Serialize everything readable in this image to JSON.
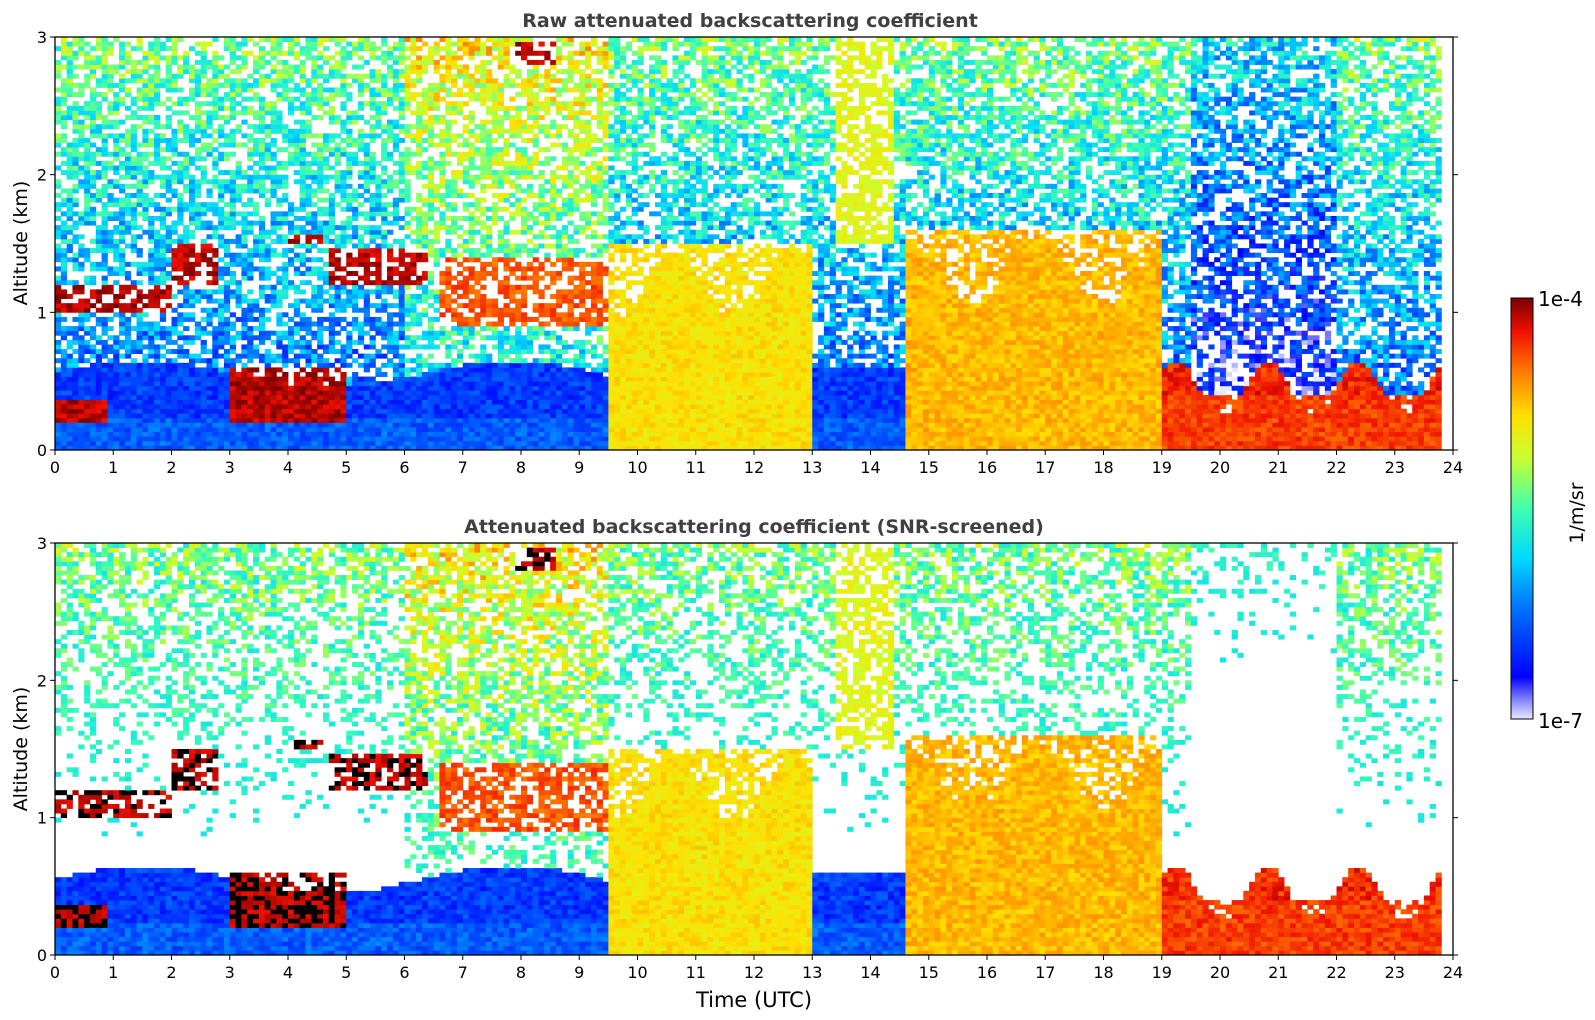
{
  "chart_data": [
    {
      "type": "heatmap",
      "title": "Raw attenuated backscattering coefficient",
      "xlabel": "",
      "ylabel": "Altitude (km)",
      "xlim": [
        0,
        24
      ],
      "ylim": [
        0,
        3
      ],
      "xticks": [
        "0",
        "1",
        "2",
        "3",
        "4",
        "5",
        "6",
        "7",
        "8",
        "9",
        "10",
        "11",
        "12",
        "13",
        "14",
        "15",
        "16",
        "17",
        "18",
        "19",
        "20",
        "21",
        "22",
        "23",
        "24"
      ],
      "yticks": [
        "0",
        "1",
        "2",
        "3"
      ],
      "features": [
        {
          "name": "aerosol layer",
          "time": [
            0.0,
            2.0
          ],
          "altitude": [
            1.0,
            1.2
          ],
          "level": 1.0
        },
        {
          "name": "rising layer",
          "time": [
            2.0,
            2.8
          ],
          "altitude": [
            1.2,
            1.5
          ],
          "level": 1.0
        },
        {
          "name": "cloud",
          "time": [
            4.0,
            4.6
          ],
          "altitude": [
            1.5,
            1.55
          ],
          "level": 1.0
        },
        {
          "name": "cloud",
          "time": [
            4.7,
            6.4
          ],
          "altitude": [
            1.2,
            1.45
          ],
          "level": 1.0
        },
        {
          "name": "near-surface layer",
          "time": [
            0.0,
            0.9
          ],
          "altitude": [
            0.2,
            0.35
          ],
          "level": 1.0
        },
        {
          "name": "low cloud",
          "time": [
            3.0,
            5.0
          ],
          "altitude": [
            0.2,
            0.6
          ],
          "level": 1.0
        },
        {
          "name": "upper cloud",
          "time": [
            7.9,
            8.6
          ],
          "altitude": [
            2.8,
            2.95
          ],
          "level": 1.0
        },
        {
          "name": "broken layer",
          "time": [
            6.6,
            9.5
          ],
          "altitude": [
            0.9,
            1.4
          ],
          "level": 0.9
        },
        {
          "name": "convective plume",
          "time": [
            9.5,
            13.0
          ],
          "altitude": [
            0.0,
            1.5
          ],
          "level": 0.75
        },
        {
          "name": "rising plume",
          "time": [
            13.4,
            14.4
          ],
          "altitude": [
            1.5,
            3.0
          ],
          "level": 0.7
        },
        {
          "name": "convective plume",
          "time": [
            14.6,
            19.0
          ],
          "altitude": [
            0.0,
            1.6
          ],
          "level": 0.8
        },
        {
          "name": "boundary layer",
          "time": [
            19.0,
            23.8
          ],
          "altitude": [
            0.0,
            0.4
          ],
          "level": 0.92
        }
      ]
    },
    {
      "type": "heatmap",
      "title": "Attenuated backscattering coefficient (SNR-screened)",
      "xlabel": "Time (UTC)",
      "ylabel": "Altitude (km)",
      "xlim": [
        0,
        24
      ],
      "ylim": [
        0,
        3
      ],
      "xticks": [
        "0",
        "1",
        "2",
        "3",
        "4",
        "5",
        "6",
        "7",
        "8",
        "9",
        "10",
        "11",
        "12",
        "13",
        "14",
        "15",
        "16",
        "17",
        "18",
        "19",
        "20",
        "21",
        "22",
        "23",
        "24"
      ],
      "yticks": [
        "0",
        "1",
        "2",
        "3"
      ]
    }
  ],
  "colorbar": {
    "label": "1/m/sr",
    "max_label": "1e-4",
    "min_label": "1e-7",
    "scale": "log",
    "range": [
      1e-07,
      0.0001
    ],
    "colormap": "jet"
  }
}
